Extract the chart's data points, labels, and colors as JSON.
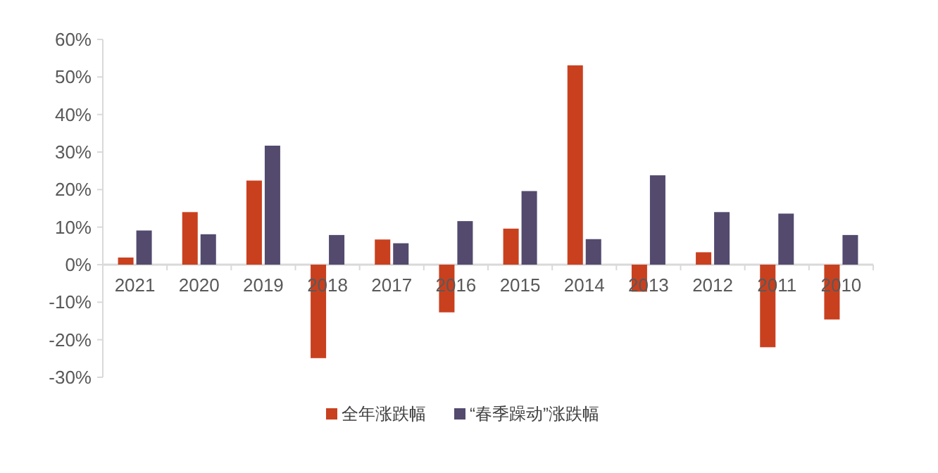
{
  "chart_data": {
    "type": "bar",
    "categories": [
      "2021",
      "2020",
      "2019",
      "2018",
      "2017",
      "2016",
      "2015",
      "2014",
      "2013",
      "2012",
      "2011",
      "2010"
    ],
    "series": [
      {
        "name": "全年涨跌幅",
        "color": "#c9401f",
        "values": [
          1.9,
          14.0,
          22.4,
          -24.9,
          6.7,
          -12.7,
          9.6,
          53.1,
          -7.2,
          3.3,
          -22.0,
          -14.6
        ]
      },
      {
        "name": "“春季躁动”涨跌幅",
        "color": "#534a6e",
        "values": [
          9.1,
          8.1,
          31.7,
          7.9,
          5.7,
          11.6,
          19.6,
          6.8,
          23.8,
          14.0,
          13.6,
          7.9
        ]
      }
    ],
    "ylim": [
      -30,
      60
    ],
    "yticks": [
      {
        "value": 60,
        "label": "60%"
      },
      {
        "value": 50,
        "label": "50%"
      },
      {
        "value": 40,
        "label": "40%"
      },
      {
        "value": 30,
        "label": "30%"
      },
      {
        "value": 20,
        "label": "20%"
      },
      {
        "value": 10,
        "label": "10%"
      },
      {
        "value": 0,
        "label": "0%"
      },
      {
        "value": -10,
        "label": "-10%"
      },
      {
        "value": -20,
        "label": "-20%"
      },
      {
        "value": -30,
        "label": "-30%"
      }
    ],
    "grid": false,
    "legend": "bottom"
  }
}
